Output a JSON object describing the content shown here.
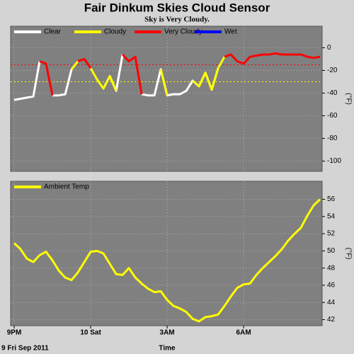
{
  "chart_data": [
    {
      "type": "line",
      "title": "Fair Dinkum Skies Cloud Sensor",
      "subtitle": "Sky is Very Cloudy.",
      "y_label": "(°F)",
      "x": [
        0,
        0.25,
        0.5,
        0.75,
        1,
        1.25,
        1.5,
        1.75,
        2,
        2.25,
        2.5,
        2.75,
        3,
        3.25,
        3.5,
        3.75,
        4,
        4.25,
        4.5,
        4.75,
        5,
        5.25,
        5.5,
        5.75,
        6,
        6.25,
        6.5,
        6.75,
        7,
        7.25,
        7.5,
        7.75,
        8,
        8.25,
        8.5,
        8.75,
        9,
        9.25,
        9.5,
        9.75,
        10,
        10.25,
        10.5,
        10.75,
        11,
        11.25,
        11.5,
        11.75,
        12
      ],
      "series": [
        {
          "name": "Clear",
          "color": "#ffffff",
          "values": [
            -46,
            -45,
            -44,
            -43,
            -12,
            null,
            -42,
            -42,
            -41,
            -19,
            null,
            null,
            null,
            null,
            -36,
            -25,
            -38,
            -6,
            null,
            null,
            -41,
            -42,
            -42,
            -19,
            -42,
            -41,
            -41,
            -38,
            -29,
            -34,
            -22,
            -37,
            -18,
            null,
            null,
            null,
            null,
            null,
            null,
            null,
            null,
            null,
            null,
            null,
            null,
            null,
            null,
            null,
            null
          ]
        },
        {
          "name": "Cloudy",
          "color": "#ffff00",
          "values": [
            null,
            null,
            null,
            null,
            null,
            null,
            null,
            null,
            null,
            -19,
            -12,
            null,
            -18,
            -28,
            -36,
            -25,
            -38,
            null,
            null,
            null,
            null,
            null,
            null,
            -19,
            -42,
            null,
            null,
            null,
            -29,
            -34,
            -22,
            -37,
            -18,
            -8,
            null,
            null,
            null,
            null,
            null,
            null,
            null,
            null,
            null,
            null,
            null,
            null,
            null,
            null,
            null
          ]
        },
        {
          "name": "Very Cloudy",
          "color": "#ff0000",
          "values": [
            null,
            null,
            null,
            null,
            -12,
            -14,
            -42,
            null,
            null,
            null,
            -12,
            -10,
            -18,
            null,
            null,
            null,
            null,
            -6,
            -12,
            -8,
            -41,
            null,
            null,
            null,
            null,
            null,
            null,
            null,
            null,
            null,
            null,
            null,
            null,
            -8,
            -6,
            -12,
            -14,
            -8,
            -7,
            -6,
            -6,
            -5,
            -6,
            -6,
            -6,
            -6,
            -8,
            -9,
            -8
          ]
        },
        {
          "name": "Wet",
          "color": "#0000ff",
          "values": [
            null,
            null,
            null,
            null,
            null,
            null,
            null,
            null,
            null,
            null,
            null,
            null,
            null,
            null,
            null,
            null,
            null,
            null,
            null,
            null,
            null,
            null,
            null,
            null,
            null,
            null,
            null,
            null,
            null,
            null,
            null,
            null,
            null,
            null,
            null,
            null,
            null,
            null,
            null,
            null,
            null,
            null,
            null,
            null,
            null,
            null,
            null,
            null,
            null
          ]
        }
      ],
      "reference_lines": [
        {
          "value": -15,
          "color": "#ff0000"
        },
        {
          "value": -30,
          "color": "#ffff00"
        }
      ],
      "xlim": [
        -0.14,
        12.08
      ],
      "xticks": [
        0,
        3,
        6,
        9
      ],
      "ylim": [
        -109,
        19
      ],
      "yticks": [
        0,
        -20,
        -40,
        -60,
        -80,
        -100
      ],
      "grid": true
    },
    {
      "type": "line",
      "y_label": "(°F)",
      "x_label": "Time",
      "date_label": "9 Fri Sep 2011",
      "x": [
        0,
        0.25,
        0.5,
        0.75,
        1,
        1.25,
        1.5,
        1.75,
        2,
        2.25,
        2.5,
        2.75,
        3,
        3.25,
        3.5,
        3.75,
        4,
        4.25,
        4.5,
        4.75,
        5,
        5.25,
        5.5,
        5.75,
        6,
        6.25,
        6.5,
        6.75,
        7,
        7.25,
        7.5,
        7.75,
        8,
        8.25,
        8.5,
        8.75,
        9,
        9.25,
        9.5,
        9.75,
        10,
        10.25,
        10.5,
        10.75,
        11,
        11.25,
        11.5,
        11.75,
        12
      ],
      "series": [
        {
          "name": "Ambient Temp",
          "color": "#ffff00",
          "values": [
            50.9,
            50.2,
            49.1,
            48.7,
            49.5,
            49.9,
            48.9,
            47.7,
            46.9,
            46.6,
            47.5,
            48.7,
            49.9,
            50.0,
            49.7,
            48.5,
            47.3,
            47.2,
            48.0,
            46.9,
            46.2,
            45.6,
            45.2,
            45.3,
            44.3,
            43.6,
            43.3,
            42.9,
            42.1,
            41.8,
            42.3,
            42.4,
            42.6,
            43.6,
            44.7,
            45.7,
            46.1,
            46.2,
            47.2,
            48.0,
            48.7,
            49.4,
            50.2,
            51.2,
            52.0,
            52.7,
            54.1,
            55.3,
            56.0
          ]
        }
      ],
      "xlim": [
        -0.14,
        12.08
      ],
      "xticks": [
        {
          "value": 0,
          "label": "9PM"
        },
        {
          "value": 3,
          "label": "10 Sat"
        },
        {
          "value": 6,
          "label": "3AM"
        },
        {
          "value": 9,
          "label": "6AM"
        }
      ],
      "ylim": [
        41.3,
        58.1
      ],
      "yticks": [
        42,
        44,
        46,
        48,
        50,
        52,
        54,
        56
      ],
      "grid": true
    }
  ]
}
